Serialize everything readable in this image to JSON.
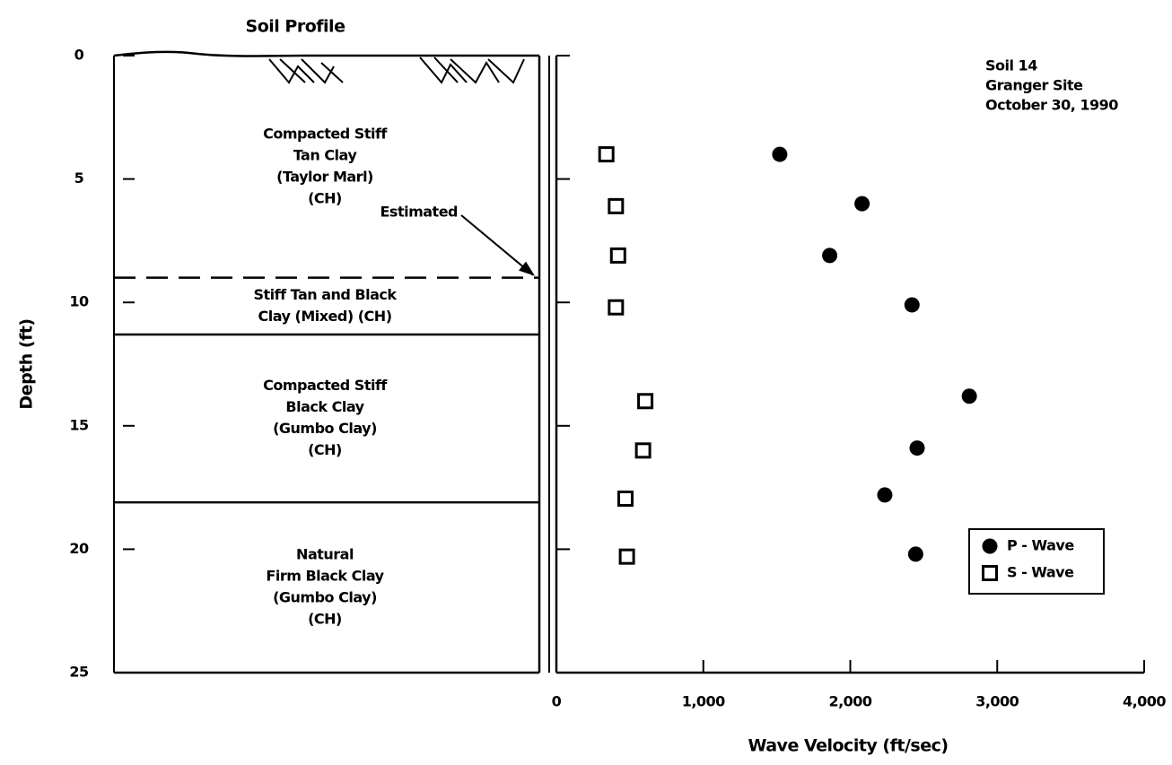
{
  "chart_data": {
    "type": "scatter",
    "xlabel": "Wave Velocity (ft/sec)",
    "ylabel": "Depth (ft)",
    "xlim": [
      0,
      4000
    ],
    "xticks": [
      0,
      {
        "value": 1000,
        "label": "1,000"
      },
      {
        "value": 2000,
        "label": "2,000"
      },
      {
        "value": 3000,
        "label": "3,000"
      },
      {
        "value": 4000,
        "label": "4,000"
      }
    ],
    "ylim": [
      0,
      25
    ],
    "yticks": [
      0,
      5,
      10,
      15,
      20,
      25
    ],
    "y_inverted": true,
    "legend": "lower right",
    "annotation": [
      "Soil 14",
      "Granger Site",
      "October 30, 1990"
    ],
    "series": [
      {
        "name": "P - Wave",
        "marker": "circle",
        "color": "#000000",
        "x": [
          1520,
          2080,
          1860,
          2420,
          2810,
          2455,
          2235,
          2445
        ],
        "values": [
          4.0,
          6.0,
          8.1,
          10.1,
          13.8,
          15.9,
          17.8,
          20.2
        ]
      },
      {
        "name": "S - Wave",
        "marker": "square",
        "color": "#000000",
        "x": [
          340,
          405,
          420,
          405,
          605,
          590,
          470,
          480
        ],
        "values": [
          4.0,
          6.1,
          8.1,
          10.2,
          14.0,
          16.0,
          17.95,
          20.3
        ]
      }
    ]
  },
  "profile": {
    "title": "Soil Profile",
    "boundary_note": "Estimated",
    "layers": [
      {
        "lines": [
          "Compacted Stiff",
          "Tan Clay",
          "(Taylor Marl)",
          "(CH)"
        ],
        "bottom": 9.0,
        "bottom_style": "dashed"
      },
      {
        "lines": [
          "Stiff Tan and Black",
          "Clay (Mixed) (CH)"
        ],
        "bottom": 11.3,
        "bottom_style": "solid"
      },
      {
        "lines": [
          "Compacted Stiff",
          "Black Clay",
          "(Gumbo Clay)",
          "(CH)"
        ],
        "bottom": 18.1,
        "bottom_style": "solid"
      },
      {
        "lines": [
          "Natural",
          "Firm Black Clay",
          "(Gumbo Clay)",
          "(CH)"
        ],
        "bottom": 25,
        "bottom_style": "solid"
      }
    ]
  }
}
